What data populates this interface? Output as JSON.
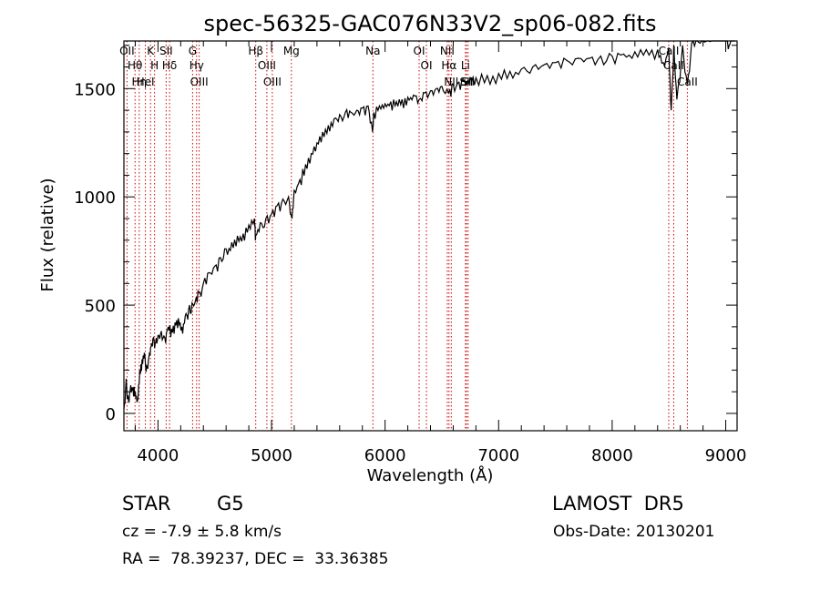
{
  "chart_data": {
    "type": "line",
    "title": "spec-56325-GAC076N33V2_sp06-082.fits",
    "xlabel": "Wavelength (Å)",
    "ylabel": "Flux (relative)",
    "xlim": [
      3700,
      9100
    ],
    "ylim": [
      -80,
      1720
    ],
    "x_ticks": [
      4000,
      5000,
      6000,
      7000,
      8000,
      9000
    ],
    "x_tick_labels": [
      "4000",
      "5000",
      "6000",
      "7000",
      "8000",
      "9000"
    ],
    "y_ticks": [
      0,
      500,
      1000,
      1500
    ],
    "y_tick_labels": [
      "0",
      "500",
      "1000",
      "1500"
    ],
    "grid": false,
    "series": [
      {
        "x": [
          3700,
          3720,
          3740,
          3760,
          3780,
          3800,
          3820,
          3840,
          3860,
          3880,
          3900,
          3920,
          3940,
          3960,
          3980,
          4000,
          4030,
          4060,
          4090,
          4120,
          4150,
          4180,
          4210,
          4240,
          4270,
          4300,
          4330,
          4360,
          4400,
          4450,
          4500,
          4550,
          4600,
          4650,
          4700,
          4750,
          4800,
          4850,
          4860,
          4900,
          4950,
          5000,
          5050,
          5100,
          5150,
          5180,
          5200,
          5250,
          5300,
          5350,
          5400,
          5450,
          5500,
          5550,
          5600,
          5650,
          5700,
          5750,
          5800,
          5850,
          5890,
          5900,
          5950,
          6000,
          6050,
          6100,
          6150,
          6200,
          6250,
          6300,
          6350,
          6400,
          6450,
          6500,
          6560,
          6600,
          6650,
          6700,
          6750,
          6800,
          6900,
          7000,
          7100,
          7200,
          7300,
          7400,
          7500,
          7600,
          7700,
          7800,
          7900,
          8000,
          8100,
          8200,
          8300,
          8400,
          8450,
          8498,
          8520,
          8542,
          8570,
          8620,
          8662,
          8700,
          8750,
          8800,
          8850,
          8900,
          8950,
          9000,
          9030,
          9060,
          9080
        ],
        "y": [
          20,
          160,
          60,
          130,
          120,
          100,
          60,
          200,
          250,
          280,
          220,
          260,
          310,
          350,
          330,
          360,
          380,
          350,
          400,
          390,
          420,
          440,
          400,
          450,
          480,
          510,
          520,
          560,
          600,
          650,
          680,
          720,
          760,
          790,
          820,
          830,
          870,
          900,
          820,
          880,
          900,
          920,
          960,
          990,
          1000,
          900,
          1030,
          1080,
          1150,
          1200,
          1250,
          1300,
          1330,
          1360,
          1380,
          1390,
          1390,
          1400,
          1410,
          1420,
          1300,
          1390,
          1420,
          1430,
          1440,
          1440,
          1450,
          1460,
          1470,
          1450,
          1480,
          1490,
          1500,
          1510,
          1480,
          1520,
          1530,
          1540,
          1550,
          1550,
          1560,
          1570,
          1580,
          1590,
          1600,
          1610,
          1620,
          1630,
          1640,
          1640,
          1650,
          1650,
          1660,
          1670,
          1680,
          1680,
          1620,
          1690,
          1400,
          1700,
          1450,
          1700,
          1520,
          1710,
          1720,
          1730,
          1740,
          1750,
          1760,
          1780,
          1700,
          1790,
          1800
        ]
      }
    ],
    "lines": [
      {
        "label": "Hθ",
        "x": 3798
      },
      {
        "label": "OII",
        "x": 3727
      },
      {
        "label": "Hη",
        "x": 3835
      },
      {
        "label": "K",
        "x": 3934
      },
      {
        "label": "HeI",
        "x": 3889
      },
      {
        "label": "H",
        "x": 3970
      },
      {
        "label": "Hδ",
        "x": 4102
      },
      {
        "label": "SII",
        "x": 4072
      },
      {
        "label": "OIII",
        "x": 4363
      },
      {
        "label": "Hγ",
        "x": 4340
      },
      {
        "label": "G",
        "x": 4305
      },
      {
        "label": "OIII",
        "x": 5007
      },
      {
        "label": "OIII",
        "x": 4959
      },
      {
        "label": "Hβ",
        "x": 4861
      },
      {
        "label": "Mg",
        "x": 5175
      },
      {
        "label": "Na",
        "x": 5893
      },
      {
        "label": "OI",
        "x": 6300
      },
      {
        "label": "OI",
        "x": 6364
      },
      {
        "label": "Hα",
        "x": 6563
      },
      {
        "label": "NII",
        "x": 6548
      },
      {
        "label": "NII",
        "x": 6583
      },
      {
        "label": "SII",
        "x": 6716
      },
      {
        "label": "Li",
        "x": 6708
      },
      {
        "label": "SII",
        "x": 6731
      },
      {
        "label": "CaII",
        "x": 8542
      },
      {
        "label": "CaII",
        "x": 8498
      },
      {
        "label": "CaII",
        "x": 8662
      }
    ],
    "line_color": "#cc0000",
    "spectrum_color": "#000000"
  },
  "info": {
    "object_class": "STAR",
    "subclass": "G5",
    "survey": "LAMOST  DR5",
    "redshift": "cz = -7.9 ± 5.8 km/s",
    "obs_date": "Obs-Date: 20130201",
    "coords": "RA =  78.39237, DEC =  33.36385"
  }
}
